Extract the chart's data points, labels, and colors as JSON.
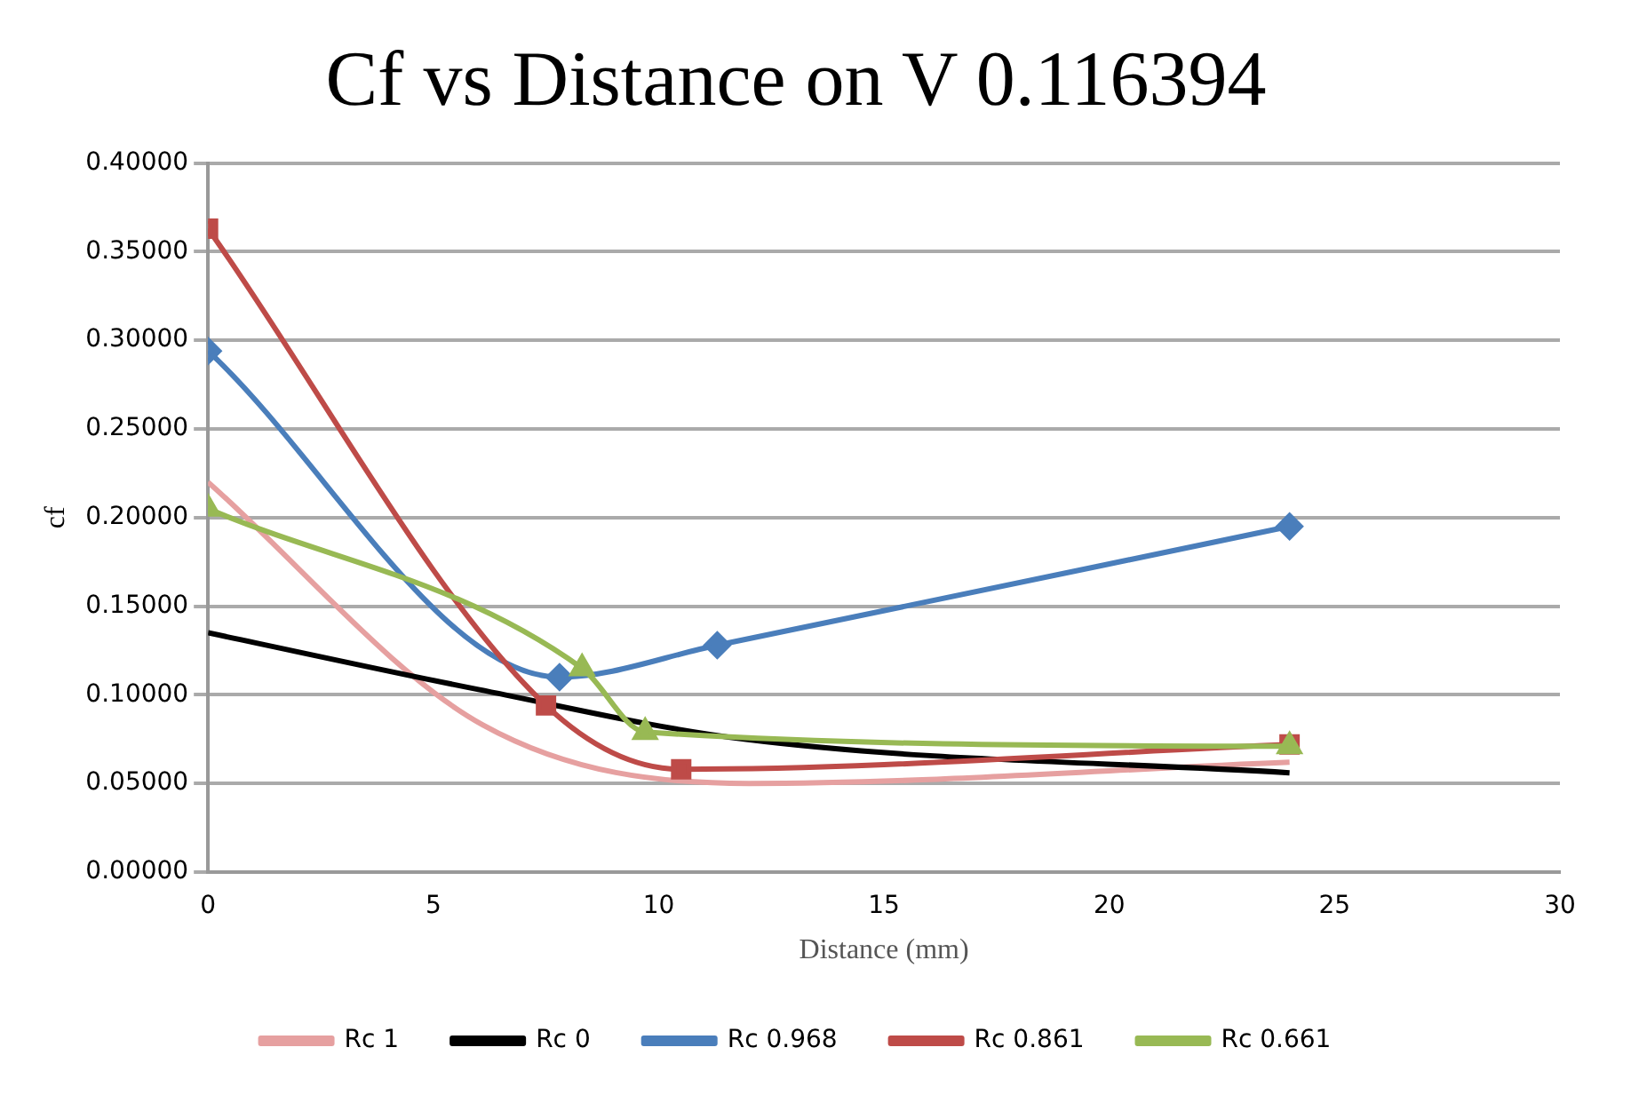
{
  "chart_data": {
    "type": "line",
    "title": "Cf vs Distance on V 0.116394",
    "xlabel": "Distance (mm)",
    "ylabel": "cf",
    "xlim": [
      0,
      30
    ],
    "xticks": [
      0,
      5,
      10,
      15,
      20,
      25,
      30
    ],
    "ylim": [
      0,
      0.4
    ],
    "yticks": [
      {
        "value": 0,
        "label": "0.00000"
      },
      {
        "value": 0.05,
        "label": "0.05000"
      },
      {
        "value": 0.1,
        "label": "0.10000"
      },
      {
        "value": 0.15,
        "label": "0.15000"
      },
      {
        "value": 0.2,
        "label": "0.20000"
      },
      {
        "value": 0.25,
        "label": "0.25000"
      },
      {
        "value": 0.3,
        "label": "0.30000"
      },
      {
        "value": 0.35,
        "label": "0.35000"
      },
      {
        "value": 0.4,
        "label": "0.40000"
      }
    ],
    "grid": "y",
    "legend": "bottom",
    "series": [
      {
        "name": "Rc 1",
        "color": "#e6a0a0",
        "marker": "none",
        "x": [
          0,
          6.1,
          12,
          24
        ],
        "values": [
          0.22,
          0.083,
          0.05,
          0.062
        ]
      },
      {
        "name": "Rc 0",
        "color": "#000000",
        "marker": "none",
        "x": [
          0,
          6,
          11.9,
          24
        ],
        "values": [
          0.135,
          0.103,
          0.075,
          0.056
        ]
      },
      {
        "name": "Rc 0.968",
        "color": "#4a7ebb",
        "marker": "diamond",
        "x": [
          0,
          7.8,
          11.3,
          24
        ],
        "values": [
          0.294,
          0.11,
          0.128,
          0.195
        ]
      },
      {
        "name": "Rc 0.861",
        "color": "#be4b48",
        "marker": "square",
        "x": [
          0,
          7.5,
          10.5,
          24
        ],
        "values": [
          0.363,
          0.094,
          0.058,
          0.072
        ]
      },
      {
        "name": "Rc 0.661",
        "color": "#98b954",
        "marker": "triangle",
        "x": [
          0,
          8.3,
          9.7,
          24
        ],
        "values": [
          0.205,
          0.115,
          0.079,
          0.071
        ]
      }
    ]
  }
}
